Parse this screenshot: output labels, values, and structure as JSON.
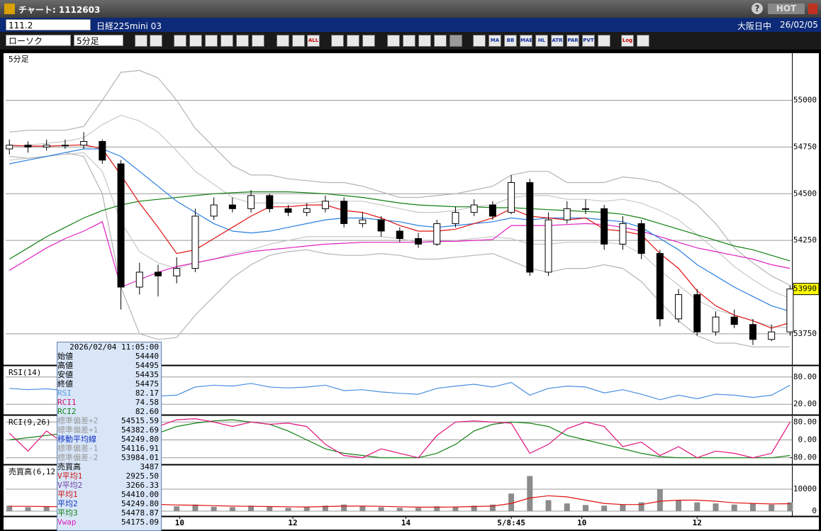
{
  "window": {
    "title": "チャート: 1112603",
    "hot": "HOT"
  },
  "header": {
    "code": "111.2",
    "name": "日経225mini 03",
    "session": "大阪日中",
    "date": "26/02/05"
  },
  "toolbar": {
    "chart_type": "ローソク",
    "interval": "5分足",
    "icons": [
      "ALL",
      "MA",
      "BB",
      "MAE",
      "HL",
      "ATR",
      "PAR",
      "PVT",
      "Log"
    ]
  },
  "info_panel": {
    "datetime": "2026/02/04 11:05:00",
    "rows": [
      {
        "label": "始値",
        "value": "54440",
        "color": "#000000"
      },
      {
        "label": "高値",
        "value": "54495",
        "color": "#000000"
      },
      {
        "label": "安値",
        "value": "54435",
        "color": "#000000"
      },
      {
        "label": "終値",
        "value": "54475",
        "color": "#000000"
      },
      {
        "label": "RSI",
        "value": "82.17",
        "color": "#5a9ae0"
      },
      {
        "label": "RCI1",
        "value": "74.58",
        "color": "#d0106a"
      },
      {
        "label": "RCI2",
        "value": "82.60",
        "color": "#108010"
      },
      {
        "label": "標準偏差+2",
        "value": "54515.59",
        "color": "#9a9a9a"
      },
      {
        "label": "標準偏差+1",
        "value": "54382.69",
        "color": "#9a9a9a"
      },
      {
        "label": "移動平均線",
        "value": "54249.80",
        "color": "#1030c0"
      },
      {
        "label": "標準偏差-1",
        "value": "54116.91",
        "color": "#9a9a9a"
      },
      {
        "label": "標準偏差-2",
        "value": "53984.01",
        "color": "#9a9a9a"
      },
      {
        "label": "売買高",
        "value": "3487",
        "color": "#000000"
      },
      {
        "label": "V平均1",
        "value": "2925.50",
        "color": "#d01010"
      },
      {
        "label": "V平均2",
        "value": "3266.33",
        "color": "#7040a0"
      },
      {
        "label": "平均1",
        "value": "54410.00",
        "color": "#d01010"
      },
      {
        "label": "平均2",
        "value": "54249.80",
        "color": "#1030c0"
      },
      {
        "label": "平均3",
        "value": "54478.87",
        "color": "#108010"
      },
      {
        "label": "Vwap",
        "value": "54175.09",
        "color": "#e020c0"
      }
    ]
  },
  "chart_data": [
    {
      "type": "candlestick",
      "title": "5分足",
      "last_price": 53990,
      "xlim": [
        -0.2,
        42.1
      ],
      "ylim": [
        53590,
        55245
      ],
      "yticks": [
        53750,
        54250,
        54500,
        54750,
        55000
      ],
      "grid": true,
      "up_color": "#ffffff",
      "down_color": "#000000",
      "open": [
        54740,
        54760,
        54750,
        54760,
        54760,
        54780,
        54660,
        54000,
        54080,
        54060,
        54100,
        54380,
        54440,
        54420,
        54490,
        54420,
        54400,
        54420,
        54460,
        54340,
        54360,
        54300,
        54260,
        54230,
        54340,
        54400,
        54440,
        54400,
        54560,
        54080,
        54360,
        54420,
        54420,
        54230,
        54340,
        54180,
        53830,
        53960,
        53760,
        53840,
        53800,
        53720,
        53760
      ],
      "high": [
        54790,
        54780,
        54790,
        54790,
        54830,
        54790,
        54680,
        54130,
        54120,
        54160,
        54420,
        54480,
        54480,
        54520,
        54500,
        54440,
        54450,
        54490,
        54480,
        54400,
        54380,
        54320,
        54290,
        54360,
        54430,
        54470,
        54460,
        54600,
        54580,
        54400,
        54460,
        54470,
        54440,
        54380,
        54360,
        54200,
        53990,
        53990,
        53870,
        53880,
        53830,
        53800,
        54010
      ],
      "low": [
        54710,
        54720,
        54730,
        54740,
        54740,
        54660,
        53880,
        53960,
        53950,
        54020,
        54080,
        54360,
        54400,
        54400,
        54400,
        54380,
        54380,
        54400,
        54320,
        54320,
        54270,
        54240,
        54210,
        54220,
        54320,
        54380,
        54360,
        54390,
        54060,
        54060,
        54340,
        54390,
        54200,
        54200,
        54150,
        53790,
        53810,
        53740,
        53740,
        53780,
        53690,
        53710,
        53740
      ],
      "close": [
        54760,
        54750,
        54760,
        54760,
        54780,
        54680,
        54000,
        54080,
        54060,
        54100,
        54380,
        54440,
        54420,
        54490,
        54420,
        54400,
        54420,
        54460,
        54340,
        54360,
        54300,
        54260,
        54230,
        54340,
        54400,
        54440,
        54380,
        54560,
        54080,
        54360,
        54420,
        54420,
        54230,
        54340,
        54180,
        53830,
        53960,
        53760,
        53840,
        53800,
        53720,
        53760,
        53990
      ],
      "series": [
        {
          "color": "#b4b4b4",
          "values": [
            54830,
            54840,
            54840,
            54840,
            54860,
            55000,
            55150,
            55160,
            55120,
            55000,
            54850,
            54750,
            54650,
            54600,
            54600,
            54580,
            54570,
            54560,
            54560,
            54540,
            54510,
            54480,
            54480,
            54490,
            54500,
            54520,
            54540,
            54600,
            54620,
            54620,
            54560,
            54560,
            54560,
            54590,
            54580,
            54560,
            54510,
            54440,
            54340,
            54210,
            54130,
            54060,
            54010
          ]
        },
        {
          "color": "#c8c8c8",
          "values": [
            54750,
            54760,
            54770,
            54780,
            54800,
            54870,
            54920,
            54890,
            54830,
            54730,
            54620,
            54550,
            54480,
            54450,
            54450,
            54450,
            54450,
            54460,
            54460,
            54460,
            54440,
            54420,
            54400,
            54400,
            54410,
            54430,
            54440,
            54480,
            54490,
            54490,
            54470,
            54470,
            54460,
            54470,
            54450,
            54410,
            54360,
            54280,
            54200,
            54110,
            54040,
            53980,
            53940
          ]
        },
        {
          "color": "#c8c8c8",
          "values": [
            54680,
            54690,
            54700,
            54710,
            54720,
            54620,
            54350,
            54190,
            54130,
            54100,
            54130,
            54150,
            54180,
            54200,
            54230,
            54250,
            54270,
            54270,
            54270,
            54270,
            54270,
            54260,
            54240,
            54240,
            54250,
            54260,
            54270,
            54260,
            54230,
            54230,
            54240,
            54240,
            54240,
            54230,
            54180,
            54090,
            54010,
            53930,
            53880,
            53850,
            53820,
            53790,
            53780
          ]
        },
        {
          "color": "#b4b4b4",
          "values": [
            54700,
            54690,
            54700,
            54720,
            54700,
            54500,
            54000,
            53750,
            53720,
            53730,
            53850,
            53950,
            54050,
            54120,
            54170,
            54190,
            54200,
            54180,
            54170,
            54170,
            54180,
            54170,
            54150,
            54150,
            54160,
            54170,
            54180,
            54140,
            54100,
            54080,
            54100,
            54100,
            54120,
            54100,
            54030,
            53920,
            53820,
            53740,
            53700,
            53700,
            53680,
            53680,
            53680
          ]
        },
        {
          "color": "#108010",
          "values": [
            54150,
            54210,
            54270,
            54320,
            54370,
            54410,
            54440,
            54460,
            54470,
            54480,
            54490,
            54500,
            54505,
            54510,
            54510,
            54510,
            54505,
            54500,
            54490,
            54480,
            54465,
            54450,
            54440,
            54435,
            54430,
            54430,
            54425,
            54425,
            54420,
            54415,
            54410,
            54405,
            54400,
            54390,
            54370,
            54340,
            54310,
            54280,
            54250,
            54220,
            54200,
            54170,
            54140
          ]
        },
        {
          "color": "#e020c0",
          "values": [
            54090,
            54150,
            54210,
            54260,
            54300,
            54350,
            54000,
            54040,
            54080,
            54110,
            54130,
            54150,
            54170,
            54190,
            54200,
            54210,
            54220,
            54230,
            54235,
            54240,
            54240,
            54240,
            54240,
            54245,
            54245,
            54250,
            54255,
            54330,
            54330,
            54330,
            54335,
            54340,
            54335,
            54320,
            54300,
            54270,
            54240,
            54210,
            54190,
            54170,
            54150,
            54120,
            54100
          ]
        },
        {
          "color": "#2a7fe0",
          "values": [
            54660,
            54680,
            54700,
            54720,
            54740,
            54740,
            54700,
            54620,
            54540,
            54460,
            54400,
            54340,
            54300,
            54290,
            54300,
            54320,
            54340,
            54360,
            54370,
            54370,
            54360,
            54350,
            54330,
            54320,
            54330,
            54340,
            54350,
            54370,
            54360,
            54370,
            54370,
            54370,
            54360,
            54350,
            54320,
            54260,
            54200,
            54120,
            54060,
            54000,
            53950,
            53900,
            53870
          ]
        },
        {
          "color": "#e01010",
          "values": [
            54760,
            54755,
            54755,
            54758,
            54762,
            54740,
            54600,
            54450,
            54320,
            54180,
            54200,
            54260,
            54320,
            54380,
            54430,
            54430,
            54440,
            54440,
            54410,
            54400,
            54370,
            54330,
            54300,
            54300,
            54310,
            54340,
            54370,
            54420,
            54380,
            54370,
            54360,
            54370,
            54310,
            54300,
            54280,
            54180,
            54100,
            53980,
            53900,
            53850,
            53820,
            53780,
            53810
          ]
        }
      ]
    },
    {
      "type": "line",
      "title": "RSI(14)",
      "xlim": [
        -0.2,
        42.1
      ],
      "ylim": [
        0,
        100
      ],
      "yticks": [
        {
          "value": 20,
          "label": "20.00"
        },
        {
          "value": 80,
          "label": "80.00"
        }
      ],
      "grid": true,
      "series": [
        {
          "color": "#4a90e0",
          "values": [
            55,
            52,
            54,
            50,
            53,
            48,
            30,
            35,
            38,
            40,
            58,
            62,
            60,
            66,
            58,
            56,
            58,
            62,
            50,
            52,
            47,
            44,
            42,
            55,
            60,
            64,
            58,
            68,
            40,
            55,
            60,
            58,
            45,
            52,
            42,
            30,
            40,
            32,
            42,
            40,
            35,
            40,
            62
          ]
        }
      ]
    },
    {
      "type": "line",
      "title": "RCI(9,26)",
      "xlim": [
        -0.2,
        42.1
      ],
      "ylim": [
        -100,
        100
      ],
      "yticks": [
        {
          "value": -80,
          "label": "-80.00"
        },
        {
          "value": 0,
          "label": "0.00"
        },
        {
          "value": 80,
          "label": "80.00"
        }
      ],
      "grid": true,
      "series": [
        {
          "color": "#108010",
          "values": [
            0,
            10,
            20,
            30,
            20,
            10,
            -40,
            -20,
            30,
            60,
            75,
            85,
            90,
            80,
            70,
            40,
            0,
            -40,
            -60,
            -70,
            -80,
            -80,
            -80,
            -60,
            -20,
            40,
            70,
            80,
            75,
            60,
            20,
            0,
            -20,
            -40,
            -60,
            -75,
            -80,
            -80,
            -80,
            -80,
            -80,
            -80,
            -70
          ]
        },
        {
          "color": "#e0107a",
          "values": [
            30,
            -50,
            40,
            -20,
            80,
            70,
            -60,
            -40,
            60,
            90,
            95,
            80,
            60,
            80,
            70,
            75,
            60,
            -20,
            -70,
            -80,
            -40,
            -60,
            -80,
            20,
            80,
            85,
            80,
            75,
            -60,
            -20,
            50,
            80,
            60,
            -30,
            -10,
            -70,
            -30,
            -80,
            -50,
            -60,
            -80,
            -60,
            80
          ]
        }
      ]
    },
    {
      "type": "bar",
      "title": "売買高(6,12)",
      "xlim": [
        -0.2,
        42.1
      ],
      "ylim": [
        0,
        20000
      ],
      "yticks": [
        0,
        10000
      ],
      "grid": true,
      "color": "#8c8c8c",
      "xticks": [
        {
          "value": 9.16,
          "label": "10"
        },
        {
          "value": 15.25,
          "label": "12"
        },
        {
          "value": 21.33,
          "label": "14"
        },
        {
          "value": 27,
          "label": "5/8:45"
        },
        {
          "value": 30.8,
          "label": "10"
        },
        {
          "value": 37,
          "label": "12"
        }
      ],
      "values": [
        2500,
        1800,
        2000,
        1500,
        2200,
        3500,
        4500,
        3000,
        2500,
        2200,
        3000,
        2000,
        1800,
        2500,
        2000,
        1500,
        1800,
        2500,
        3000,
        2200,
        1800,
        1500,
        1500,
        2200,
        2000,
        2500,
        3000,
        8000,
        16000,
        5000,
        3500,
        2800,
        2500,
        3000,
        4000,
        10000,
        5000,
        4000,
        3500,
        3000,
        3500,
        3000,
        4000
      ],
      "series": [
        {
          "color": "#e01010",
          "values": [
            2200,
            2200,
            2100,
            2000,
            2100,
            2600,
            3200,
            3300,
            3100,
            2800,
            2700,
            2500,
            2300,
            2200,
            2100,
            2000,
            1900,
            2100,
            2300,
            2300,
            2200,
            2000,
            1800,
            1800,
            1900,
            2100,
            2300,
            3500,
            6000,
            7000,
            6500,
            5000,
            3500,
            3000,
            3000,
            4500,
            5000,
            5000,
            4500,
            3800,
            3500,
            3300,
            3400
          ]
        }
      ]
    }
  ]
}
